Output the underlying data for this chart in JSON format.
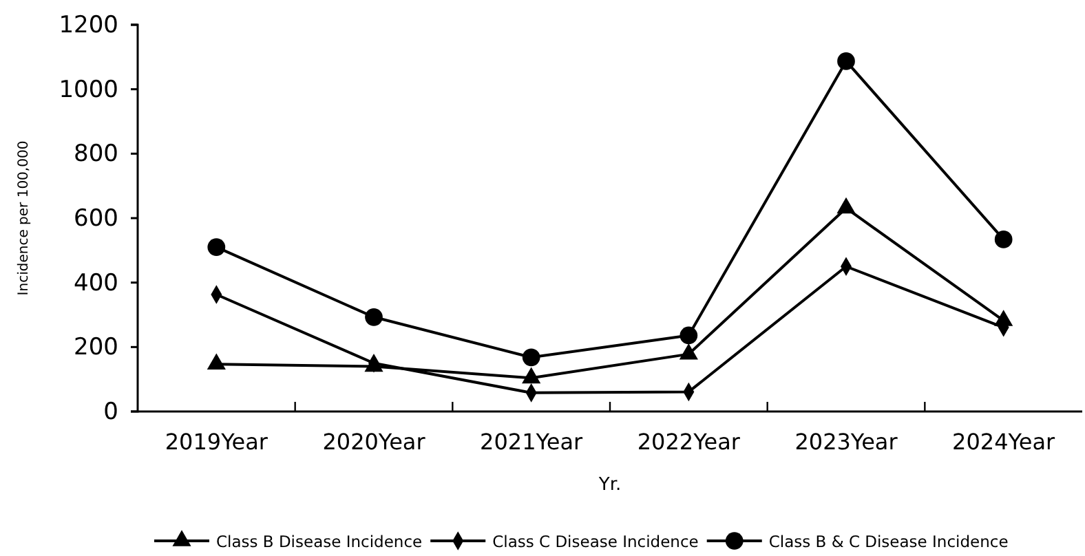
{
  "chart_data": {
    "type": "line",
    "xlabel": "Yr.",
    "ylabel": "Incidence per 100,000",
    "categories": [
      "2019Year",
      "2020Year",
      "2021Year",
      "2022Year",
      "2023Year",
      "2024Year"
    ],
    "series": [
      {
        "name": "Class B Disease Incidence",
        "color": "#000000",
        "marker": "triangle",
        "values": [
          147,
          140,
          104,
          178,
          631,
          282
        ]
      },
      {
        "name": "Class C Disease Incidence",
        "color": "#000000",
        "marker": "diamond",
        "values": [
          363,
          150,
          58,
          61,
          450,
          261
        ]
      },
      {
        "name": "Class B & C Disease Incidence",
        "color": "#000000",
        "marker": "circle",
        "values": [
          510,
          293,
          168,
          236,
          1087,
          534
        ]
      }
    ],
    "ylim": [
      0,
      1200
    ],
    "yticks": [
      0,
      200,
      400,
      600,
      800,
      1000,
      1200
    ],
    "grid": false,
    "legend": "bottom",
    "line_style": "solid"
  }
}
